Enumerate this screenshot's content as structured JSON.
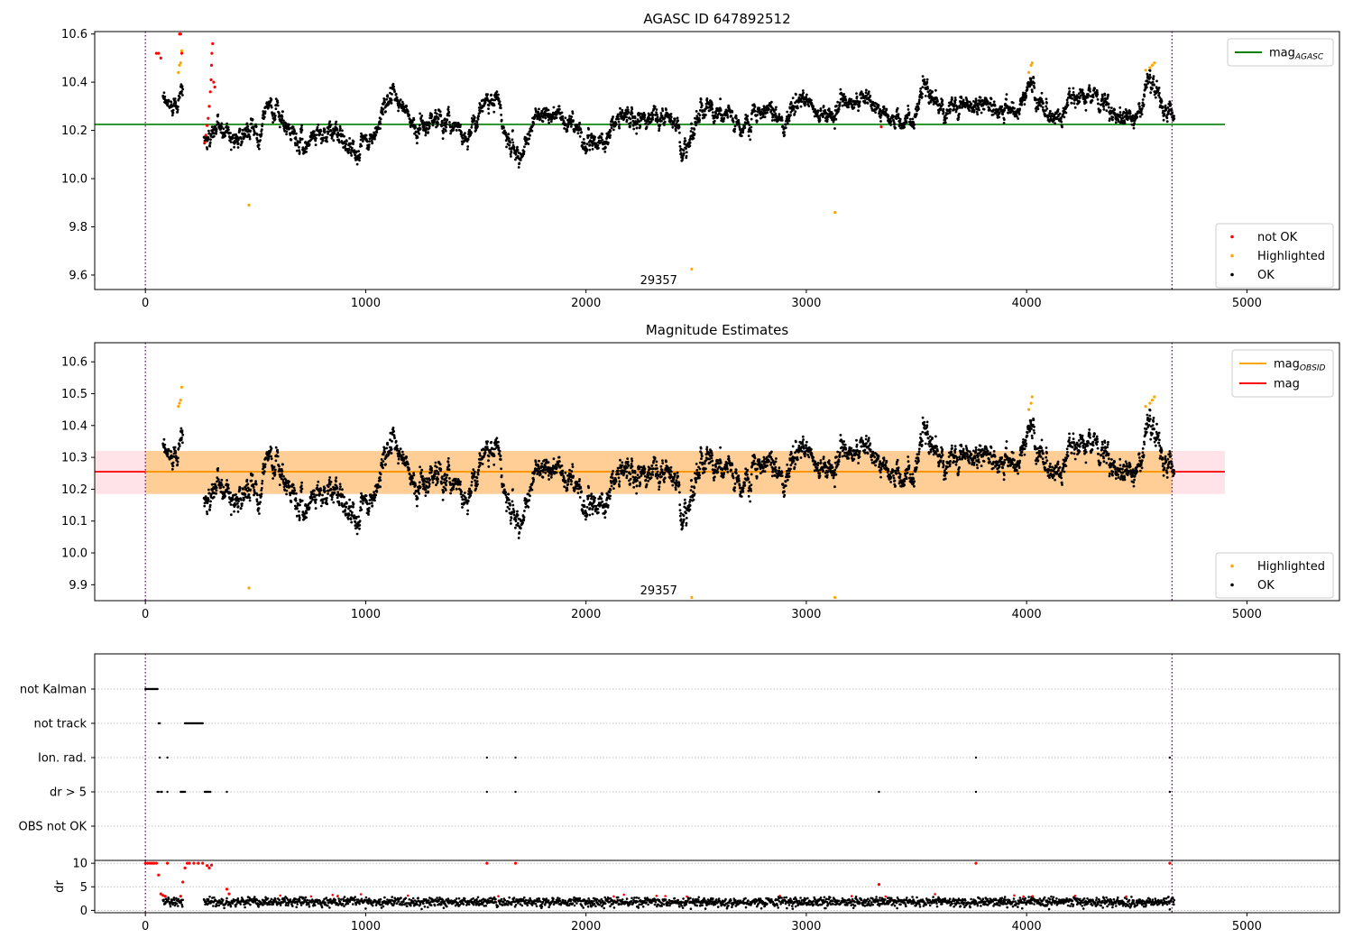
{
  "chart_data": [
    {
      "type": "scatter",
      "title": "AGASC ID 647892512",
      "xlim": [
        -230,
        5420
      ],
      "ylim": [
        9.54,
        10.61
      ],
      "xticks": [
        0,
        1000,
        2000,
        3000,
        4000,
        5000
      ],
      "yticks": [
        9.6,
        9.8,
        10.0,
        10.2,
        10.4,
        10.6
      ],
      "ytick_labels": [
        "9.6",
        "9.8",
        "10.0",
        "10.2",
        "10.4",
        "10.6"
      ],
      "hlines": [
        {
          "name": "mag",
          "subscript": "AGASC",
          "y": 10.225,
          "x_range": [
            -230,
            4900
          ],
          "color": "#008000"
        }
      ],
      "vlines": [
        0,
        4660
      ],
      "annotation": {
        "text": "29357",
        "x": 2330,
        "y": 9.57
      },
      "series": [
        {
          "name": "not OK",
          "color": "#ff0000",
          "points": [
            [
              50,
              10.52
            ],
            [
              60,
              10.52
            ],
            [
              70,
              10.5
            ],
            [
              155,
              10.6
            ],
            [
              160,
              10.6
            ],
            [
              165,
              10.52
            ],
            [
              270,
              10.15
            ],
            [
              275,
              10.18
            ],
            [
              280,
              10.22
            ],
            [
              285,
              10.25
            ],
            [
              290,
              10.3
            ],
            [
              295,
              10.36
            ],
            [
              298,
              10.41
            ],
            [
              300,
              10.47
            ],
            [
              302,
              10.52
            ],
            [
              305,
              10.56
            ],
            [
              310,
              10.4
            ],
            [
              315,
              10.38
            ],
            [
              3340,
              10.215
            ]
          ]
        },
        {
          "name": "Highlighted",
          "color": "#ffa500",
          "points": [
            [
              150,
              10.44
            ],
            [
              155,
              10.47
            ],
            [
              160,
              10.48
            ],
            [
              165,
              10.53
            ],
            [
              470,
              9.89
            ],
            [
              2480,
              9.625
            ],
            [
              3130,
              9.86
            ],
            [
              4010,
              10.44
            ],
            [
              4020,
              10.47
            ],
            [
              4025,
              10.48
            ],
            [
              4540,
              10.45
            ],
            [
              4560,
              10.46
            ],
            [
              4570,
              10.47
            ],
            [
              4580,
              10.48
            ]
          ]
        },
        {
          "name": "OK",
          "color": "#000000",
          "x_start": 80,
          "x_end": 4670,
          "segments": [
            [
              80,
              10.31
            ],
            [
              120,
              10.3
            ],
            [
              160,
              10.37
            ],
            [
              270,
              10.15
            ],
            [
              330,
              10.22
            ],
            [
              420,
              10.17
            ],
            [
              520,
              10.2
            ],
            [
              560,
              10.33
            ],
            [
              640,
              10.2
            ],
            [
              720,
              10.14
            ],
            [
              780,
              10.2
            ],
            [
              880,
              10.18
            ],
            [
              960,
              10.11
            ],
            [
              1040,
              10.17
            ],
            [
              1100,
              10.35
            ],
            [
              1170,
              10.3
            ],
            [
              1220,
              10.2
            ],
            [
              1300,
              10.25
            ],
            [
              1380,
              10.24
            ],
            [
              1460,
              10.17
            ],
            [
              1520,
              10.3
            ],
            [
              1590,
              10.36
            ],
            [
              1640,
              10.16
            ],
            [
              1700,
              10.1
            ],
            [
              1760,
              10.24
            ],
            [
              1840,
              10.27
            ],
            [
              1900,
              10.25
            ],
            [
              1960,
              10.2
            ],
            [
              2020,
              10.14
            ],
            [
              2100,
              10.17
            ],
            [
              2140,
              10.26
            ],
            [
              2220,
              10.24
            ],
            [
              2300,
              10.25
            ],
            [
              2400,
              10.25
            ],
            [
              2430,
              10.14
            ],
            [
              2470,
              10.14
            ],
            [
              2520,
              10.3
            ],
            [
              2600,
              10.28
            ],
            [
              2660,
              10.26
            ],
            [
              2700,
              10.18
            ],
            [
              2760,
              10.28
            ],
            [
              2830,
              10.3
            ],
            [
              2890,
              10.22
            ],
            [
              2940,
              10.3
            ],
            [
              3000,
              10.32
            ],
            [
              3040,
              10.27
            ],
            [
              3100,
              10.27
            ],
            [
              3160,
              10.3
            ],
            [
              3240,
              10.33
            ],
            [
              3340,
              10.3
            ],
            [
              3380,
              10.22
            ],
            [
              3440,
              10.25
            ],
            [
              3500,
              10.25
            ],
            [
              3530,
              10.4
            ],
            [
              3600,
              10.28
            ],
            [
              3700,
              10.3
            ],
            [
              3800,
              10.31
            ],
            [
              3900,
              10.3
            ],
            [
              3960,
              10.27
            ],
            [
              4020,
              10.4
            ],
            [
              4080,
              10.28
            ],
            [
              4160,
              10.24
            ],
            [
              4200,
              10.35
            ],
            [
              4300,
              10.33
            ],
            [
              4380,
              10.3
            ],
            [
              4440,
              10.25
            ],
            [
              4500,
              10.26
            ],
            [
              4560,
              10.43
            ],
            [
              4620,
              10.29
            ],
            [
              4670,
              10.27
            ]
          ],
          "noise": 0.03
        }
      ],
      "legends": [
        {
          "placement": "top-right",
          "entries": [
            {
              "label": "mag",
              "subscript": "AGASC",
              "kind": "line",
              "color": "#008000"
            }
          ]
        },
        {
          "placement": "bottom-right",
          "entries": [
            {
              "label": "not OK",
              "kind": "marker",
              "color": "#ff0000"
            },
            {
              "label": "Highlighted",
              "kind": "marker",
              "color": "#ffa500"
            },
            {
              "label": "OK",
              "kind": "marker",
              "color": "#000000"
            }
          ]
        }
      ]
    },
    {
      "type": "scatter",
      "title": "Magnitude Estimates",
      "xlim": [
        -230,
        5420
      ],
      "ylim": [
        9.85,
        10.66
      ],
      "xticks": [
        0,
        1000,
        2000,
        3000,
        4000,
        5000
      ],
      "yticks": [
        9.9,
        10.0,
        10.1,
        10.2,
        10.3,
        10.4,
        10.5,
        10.6
      ],
      "ytick_labels": [
        "9.9",
        "10.0",
        "10.1",
        "10.2",
        "10.3",
        "10.4",
        "10.5",
        "10.6"
      ],
      "bands": [
        {
          "y_range": [
            10.185,
            10.32
          ],
          "x_range": [
            -230,
            4900
          ],
          "color": "#ffc0cb"
        },
        {
          "y_range": [
            10.185,
            10.32
          ],
          "x_range": [
            0,
            4660
          ],
          "color": "#ffa500"
        }
      ],
      "hlines": [
        {
          "name": "mag",
          "y": 10.255,
          "x_range": [
            -230,
            4900
          ],
          "color": "#ff0000"
        },
        {
          "name": "mag",
          "subscript": "OBSID",
          "y": 10.255,
          "x_range": [
            0,
            4660
          ],
          "color": "#ffa500"
        }
      ],
      "vlines": [
        0,
        4660
      ],
      "annotation": {
        "text": "29357",
        "x": 2330,
        "y": 9.875
      },
      "series": [
        {
          "name": "Highlighted",
          "color": "#ffa500",
          "points": [
            [
              150,
              10.46
            ],
            [
              155,
              10.47
            ],
            [
              160,
              10.48
            ],
            [
              165,
              10.52
            ],
            [
              470,
              9.89
            ],
            [
              2480,
              9.86
            ],
            [
              3130,
              9.86
            ],
            [
              4010,
              10.45
            ],
            [
              4020,
              10.47
            ],
            [
              4025,
              10.49
            ],
            [
              4540,
              10.46
            ],
            [
              4560,
              10.47
            ],
            [
              4570,
              10.48
            ],
            [
              4580,
              10.49
            ]
          ]
        },
        {
          "name": "OK",
          "color": "#000000",
          "same_as": "chart_data.0.OK"
        }
      ],
      "legends": [
        {
          "placement": "top-right",
          "entries": [
            {
              "label": "mag",
              "subscript": "OBSID",
              "kind": "line",
              "color": "#ffa500"
            },
            {
              "label": "mag",
              "kind": "line",
              "color": "#ff0000"
            }
          ]
        },
        {
          "placement": "bottom-right",
          "entries": [
            {
              "label": "Highlighted",
              "kind": "marker",
              "color": "#ffa500"
            },
            {
              "label": "OK",
              "kind": "marker",
              "color": "#000000"
            }
          ]
        }
      ]
    },
    {
      "type": "scatter",
      "title": "",
      "xlim": [
        -230,
        5420
      ],
      "categories": [
        "not Kalman",
        "not track",
        "Ion. rad.",
        "dr > 5",
        "OBS not OK"
      ],
      "vlines": [
        0,
        4660
      ],
      "flags": [
        {
          "category": "not Kalman",
          "x": [
            0,
            5,
            10,
            15,
            20,
            25,
            30,
            35,
            40,
            45,
            50,
            55
          ]
        },
        {
          "category": "not track",
          "x": [
            60,
            65,
            180,
            185,
            190,
            195,
            200,
            205,
            210,
            215,
            220,
            225,
            230,
            235,
            240,
            245,
            250,
            255,
            260
          ]
        },
        {
          "category": "Ion. rad.",
          "x": [
            65,
            100,
            1550,
            1680,
            3770,
            4650
          ]
        },
        {
          "category": "dr > 5",
          "x": [
            55,
            60,
            70,
            75,
            100,
            160,
            165,
            170,
            175,
            180,
            270,
            275,
            280,
            285,
            290,
            295,
            370,
            1550,
            1680,
            3330,
            3770,
            4650
          ]
        },
        {
          "category": "OBS not OK",
          "x": []
        }
      ]
    },
    {
      "type": "scatter",
      "title": "",
      "xlim": [
        -230,
        5420
      ],
      "ylim": [
        -0.5,
        10.6
      ],
      "ylabel": "dr",
      "yticks": [
        0,
        5,
        10
      ],
      "ytick_labels": [
        "0",
        "5",
        "10"
      ],
      "vlines": [
        0,
        4660
      ],
      "series": [
        {
          "name": "dr",
          "color": "#000000",
          "baseline": 1.8,
          "noise": 0.9,
          "x_range": [
            80,
            4670
          ]
        },
        {
          "name": "dr not OK",
          "color": "#ff0000",
          "points": [
            [
              0,
              10
            ],
            [
              10,
              10
            ],
            [
              20,
              10
            ],
            [
              30,
              10
            ],
            [
              40,
              10
            ],
            [
              50,
              10
            ],
            [
              60,
              7.5
            ],
            [
              70,
              3.5
            ],
            [
              80,
              3.2
            ],
            [
              90,
              3.0
            ],
            [
              100,
              10
            ],
            [
              160,
              3
            ],
            [
              170,
              6
            ],
            [
              180,
              9
            ],
            [
              190,
              10
            ],
            [
              200,
              10
            ],
            [
              220,
              10
            ],
            [
              240,
              10
            ],
            [
              260,
              10
            ],
            [
              280,
              9.5
            ],
            [
              290,
              9
            ],
            [
              300,
              9.6
            ],
            [
              370,
              4.5
            ],
            [
              380,
              3.5
            ],
            [
              1550,
              10
            ],
            [
              1680,
              10
            ],
            [
              3330,
              5.5
            ],
            [
              3770,
              10
            ],
            [
              4650,
              10
            ]
          ],
          "scatter_x_ranges": [
            [
              400,
              4660
            ]
          ]
        }
      ]
    }
  ]
}
